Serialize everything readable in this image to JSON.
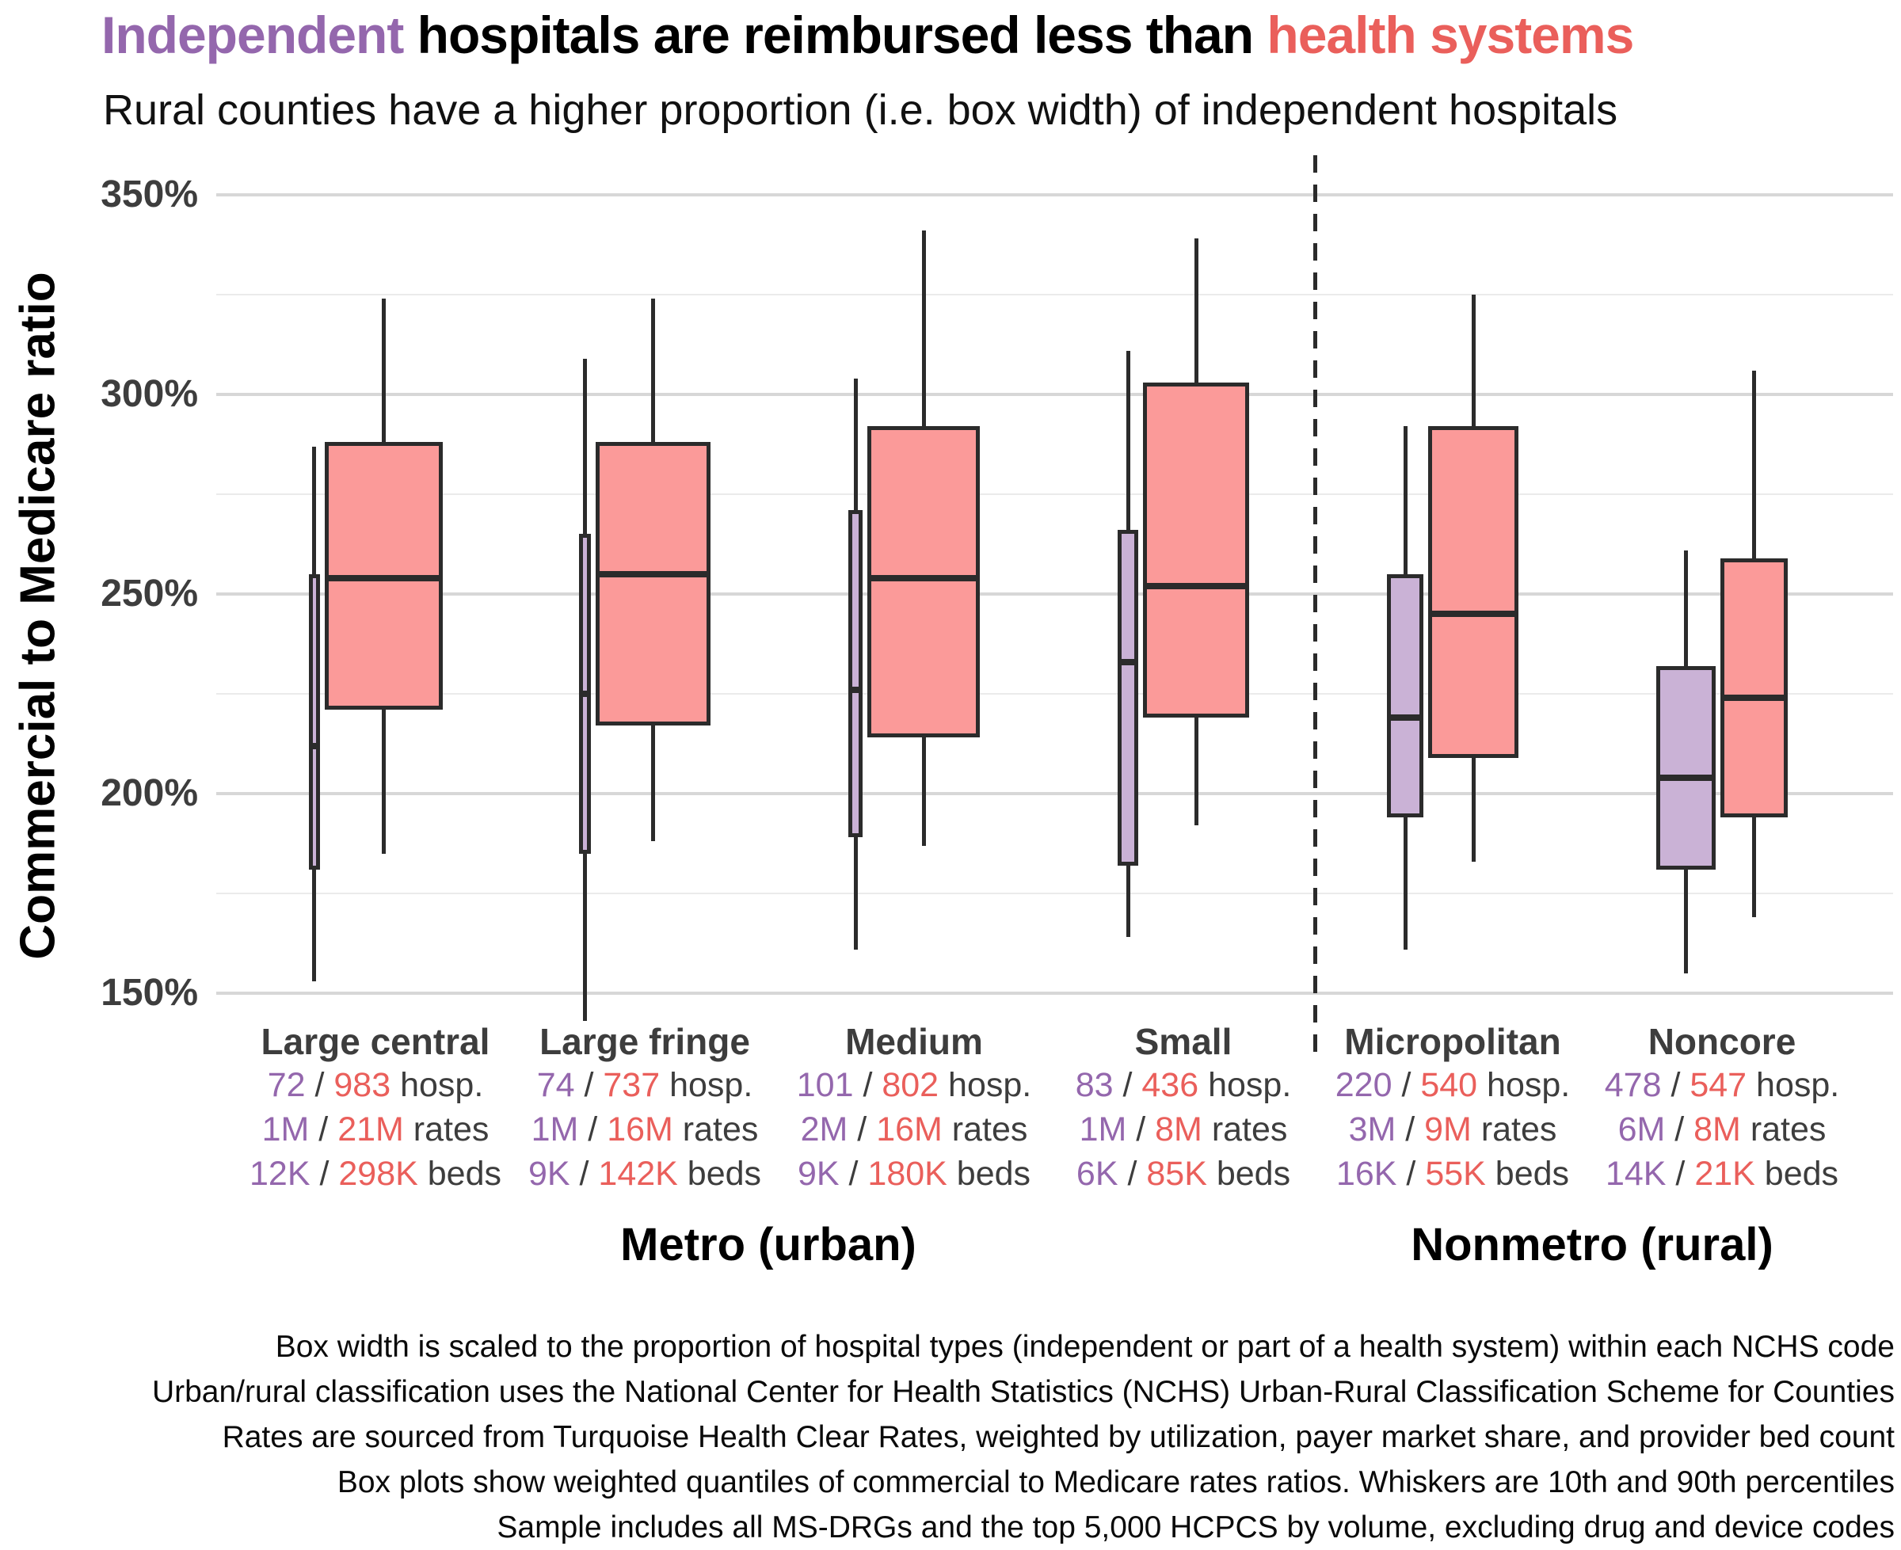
{
  "title": {
    "highlight_independent": "Independent",
    "middle": " hospitals are reimbursed less than ",
    "highlight_systems": "health systems"
  },
  "subtitle": "Rural counties have a higher proportion (i.e. box width) of independent hospitals",
  "colors": {
    "independent_fill": "#cab2d6",
    "system_fill": "#fb9a99",
    "independent_accent": "#9467ad",
    "system_accent": "#ea5f5b",
    "box_stroke": "#2b2b2b",
    "grid_major": "#d7d7d7",
    "grid_minor": "#ebebeb",
    "axis_text": "#3d3d3d"
  },
  "chart_data": {
    "type": "boxplot",
    "title": "Independent hospitals are reimbursed less than health systems",
    "subtitle": "Rural counties have a higher proportion (i.e. box width) of independent hospitals",
    "ylabel": "Commercial to Medicare ratio",
    "xlabel": "",
    "grid": "horizontal",
    "ylim": [
      140,
      358
    ],
    "y_axis": {
      "ticks": [
        {
          "label": "350%",
          "value": 350
        },
        {
          "label": "300%",
          "value": 300
        },
        {
          "label": "250%",
          "value": 250
        },
        {
          "label": "200%",
          "value": 200
        },
        {
          "label": "150%",
          "value": 150
        }
      ],
      "minor_values": [
        325,
        275,
        225,
        175
      ]
    },
    "series_legend": [
      {
        "name": "Independent",
        "color": "#cab2d6"
      },
      {
        "name": "Health system",
        "color": "#fb9a99"
      }
    ],
    "whisker_definition": "10th and 90th percentiles",
    "box_width_rule": "proportional to share of hospital type within each NCHS code",
    "groups": [
      {
        "label": "Metro (urban)",
        "categories": [
          "Large central",
          "Large fringe",
          "Medium",
          "Small"
        ]
      },
      {
        "label": "Nonmetro (rural)",
        "categories": [
          "Micropolitan",
          "Noncore"
        ]
      }
    ],
    "stats_suffixes": {
      "hospitals": "hosp.",
      "rates": "rates",
      "beds": "beds",
      "separator": " / "
    },
    "categories": [
      {
        "label": "Large central",
        "group": "Metro (urban)",
        "independent": {
          "hospitals": "72",
          "rates": "1M",
          "beds": "12K",
          "box": {
            "p10": 153,
            "q1": 181,
            "median": 212,
            "q3": 255,
            "p90": 287
          }
        },
        "system": {
          "hospitals": "983",
          "rates": "21M",
          "beds": "298K",
          "box": {
            "p10": 185,
            "q1": 221,
            "median": 254,
            "q3": 288,
            "p90": 324
          }
        }
      },
      {
        "label": "Large fringe",
        "group": "Metro (urban)",
        "independent": {
          "hospitals": "74",
          "rates": "1M",
          "beds": "9K",
          "box": {
            "p10": 143,
            "q1": 185,
            "median": 225,
            "q3": 265,
            "p90": 309
          }
        },
        "system": {
          "hospitals": "737",
          "rates": "16M",
          "beds": "142K",
          "box": {
            "p10": 188,
            "q1": 217,
            "median": 255,
            "q3": 288,
            "p90": 324
          }
        }
      },
      {
        "label": "Medium",
        "group": "Metro (urban)",
        "independent": {
          "hospitals": "101",
          "rates": "2M",
          "beds": "9K",
          "box": {
            "p10": 161,
            "q1": 189,
            "median": 226,
            "q3": 271,
            "p90": 304
          }
        },
        "system": {
          "hospitals": "802",
          "rates": "16M",
          "beds": "180K",
          "box": {
            "p10": 187,
            "q1": 214,
            "median": 254,
            "q3": 292,
            "p90": 341
          }
        }
      },
      {
        "label": "Small",
        "group": "Metro (urban)",
        "independent": {
          "hospitals": "83",
          "rates": "1M",
          "beds": "6K",
          "box": {
            "p10": 164,
            "q1": 182,
            "median": 233,
            "q3": 266,
            "p90": 311
          }
        },
        "system": {
          "hospitals": "436",
          "rates": "8M",
          "beds": "85K",
          "box": {
            "p10": 192,
            "q1": 219,
            "median": 252,
            "q3": 303,
            "p90": 339
          }
        }
      },
      {
        "label": "Micropolitan",
        "group": "Nonmetro (rural)",
        "independent": {
          "hospitals": "220",
          "rates": "3M",
          "beds": "16K",
          "box": {
            "p10": 161,
            "q1": 194,
            "median": 219,
            "q3": 255,
            "p90": 292
          }
        },
        "system": {
          "hospitals": "540",
          "rates": "9M",
          "beds": "55K",
          "box": {
            "p10": 183,
            "q1": 209,
            "median": 245,
            "q3": 292,
            "p90": 325
          }
        }
      },
      {
        "label": "Noncore",
        "group": "Nonmetro (rural)",
        "independent": {
          "hospitals": "478",
          "rates": "6M",
          "beds": "14K",
          "box": {
            "p10": 155,
            "q1": 181,
            "median": 204,
            "q3": 232,
            "p90": 261
          }
        },
        "system": {
          "hospitals": "547",
          "rates": "8M",
          "beds": "21K",
          "box": {
            "p10": 169,
            "q1": 194,
            "median": 224,
            "q3": 259,
            "p90": 306
          }
        }
      }
    ]
  },
  "footnotes": [
    "Box width is scaled to the proportion of hospital types (independent or part of a health system) within each NCHS code",
    "Urban/rural classification uses the National Center for Health Statistics (NCHS) Urban-Rural Classification Scheme for Counties",
    "Rates are sourced from Turquoise Health Clear Rates, weighted by utilization, payer market share, and provider bed count",
    "Box plots show weighted quantiles of commercial to Medicare rates ratios. Whiskers are 10th and 90th percentiles",
    "Sample includes all MS-DRGs and the top 5,000 HCPCS by volume, excluding drug and device codes"
  ]
}
